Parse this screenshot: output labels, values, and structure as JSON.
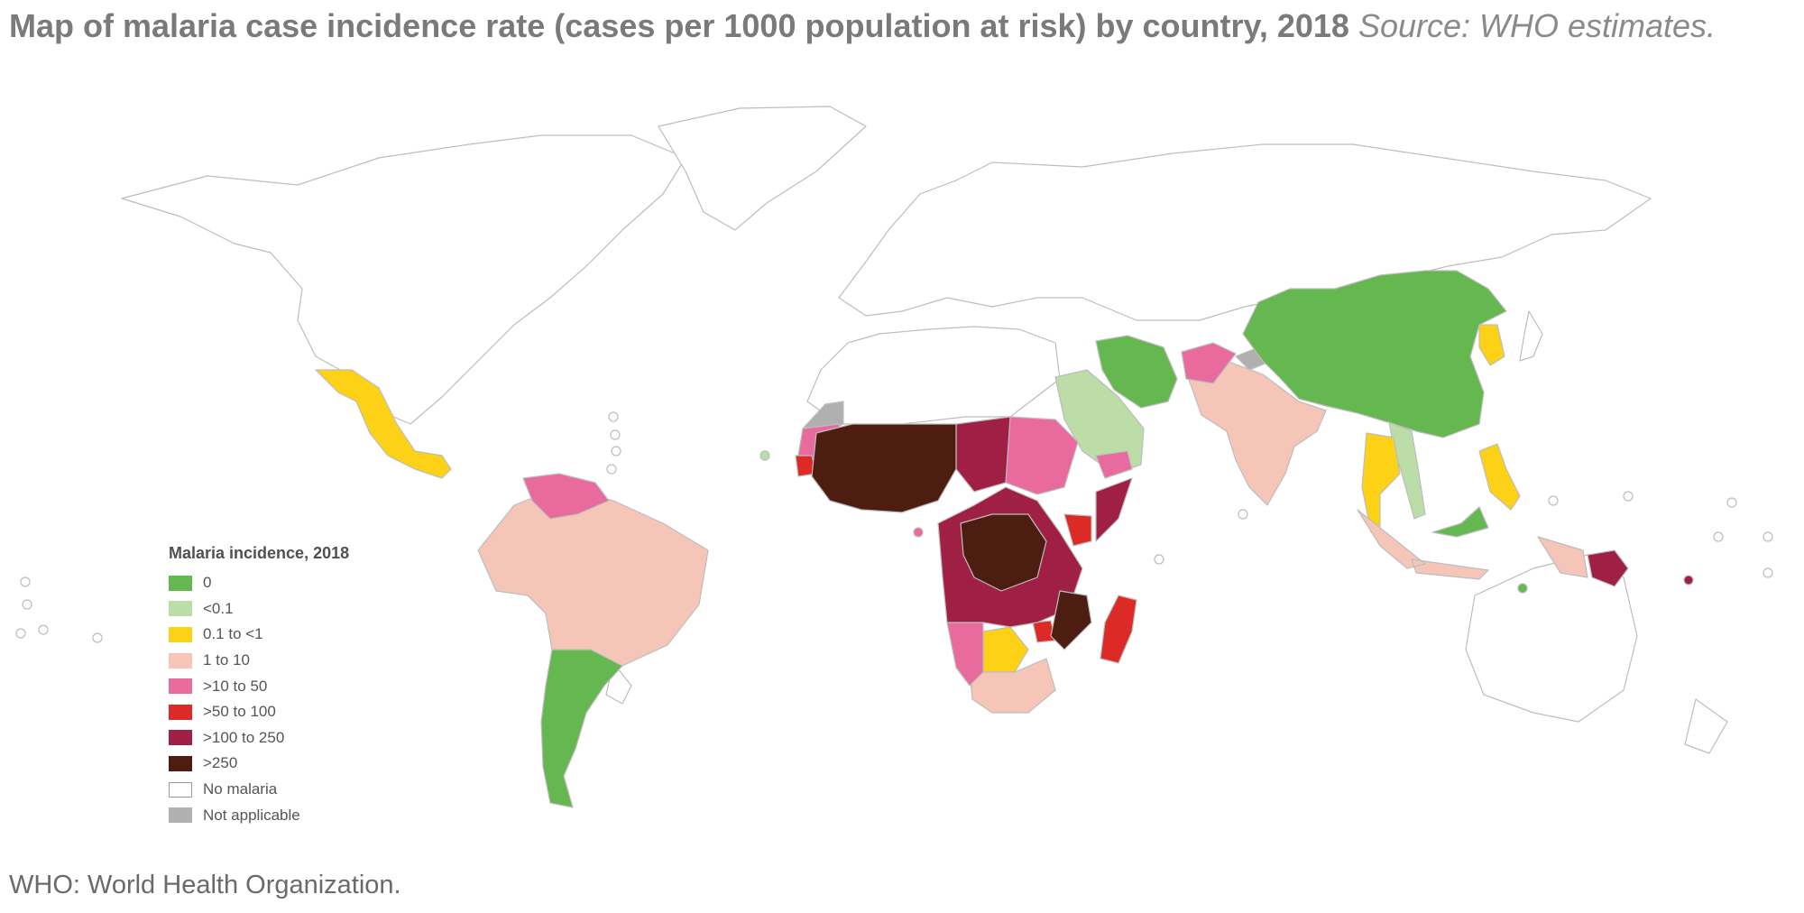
{
  "header": {
    "title": "Map of malaria case incidence rate (cases per 1000 population at risk) by country, 2018",
    "source": "Source: WHO estimates."
  },
  "legend": {
    "title": "Malaria incidence, 2018",
    "items": [
      {
        "label": "0",
        "color": "#65b84f"
      },
      {
        "label": "<0.1",
        "color": "#bcdca8"
      },
      {
        "label": "0.1 to <1",
        "color": "#fcd116"
      },
      {
        "label": "1 to 10",
        "color": "#f5c6b8"
      },
      {
        "label": ">10 to 50",
        "color": "#e96b9e"
      },
      {
        "label": ">50 to 100",
        "color": "#dc2a26"
      },
      {
        "label": ">100 to 250",
        "color": "#a01f44"
      },
      {
        "label": ">250",
        "color": "#4e1d12"
      },
      {
        "label": "No malaria",
        "color": "#ffffff"
      },
      {
        "label": "Not applicable",
        "color": "#b0b0b0"
      }
    ]
  },
  "footnote": "WHO: World Health Organization."
}
